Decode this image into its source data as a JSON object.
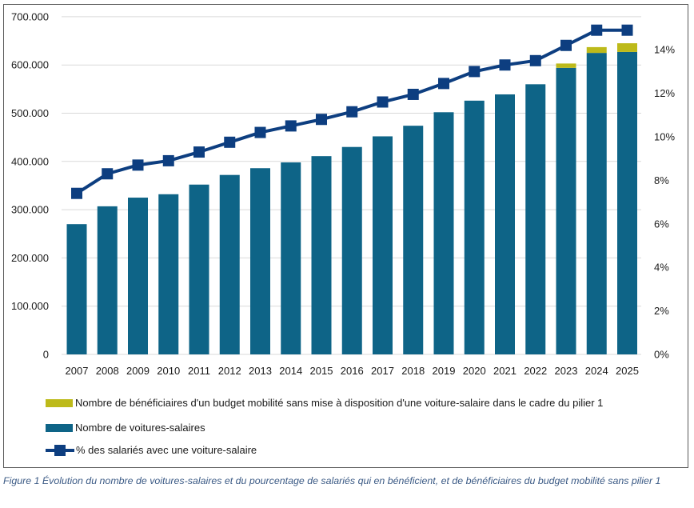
{
  "chart_data": {
    "type": "bar",
    "subtype": "stacked-bar-with-line-secondary-axis",
    "title": "",
    "xlabel": "",
    "ylabel": "",
    "y2label": "",
    "categories": [
      "2007",
      "2008",
      "2009",
      "2010",
      "2011",
      "2012",
      "2013",
      "2014",
      "2015",
      "2016",
      "2017",
      "2018",
      "2019",
      "2020",
      "2021",
      "2022",
      "2023",
      "2024",
      "2025"
    ],
    "series": [
      {
        "name": "Nombre de voitures-salaires",
        "type": "bar",
        "axis": "left",
        "color": "#0E6487",
        "values": [
          270000,
          307000,
          325000,
          332000,
          352000,
          372000,
          386000,
          398000,
          411000,
          430000,
          452000,
          474000,
          502000,
          526000,
          539000,
          560000,
          594000,
          625000,
          627000
        ]
      },
      {
        "name": "Nombre de bénéficiaires d'un budget mobilité sans mise à disposition d'une voiture-salaire dans le cadre du pilier 1",
        "type": "bar-stacked",
        "axis": "left",
        "color": "#BDBA1A",
        "values": [
          0,
          0,
          0,
          0,
          0,
          0,
          0,
          0,
          0,
          0,
          0,
          0,
          0,
          0,
          0,
          0,
          9000,
          12000,
          18000
        ]
      },
      {
        "name": "% des salariés avec une voiture-salaire",
        "type": "line",
        "axis": "right",
        "color": "#0D3E80",
        "values": [
          7.4,
          8.3,
          8.7,
          8.9,
          9.3,
          9.75,
          10.2,
          10.5,
          10.8,
          11.15,
          11.6,
          11.95,
          12.45,
          13.0,
          13.3,
          13.5,
          14.2,
          14.9,
          14.9
        ]
      }
    ],
    "ylim": [
      0,
      700000
    ],
    "y2lim": [
      0,
      15.5
    ],
    "yticks": [
      "0",
      "100.000",
      "200.000",
      "300.000",
      "400.000",
      "500.000",
      "600.000",
      "700.000"
    ],
    "ytick_values": [
      0,
      100000,
      200000,
      300000,
      400000,
      500000,
      600000,
      700000
    ],
    "y2ticks": [
      "0%",
      "2%",
      "4%",
      "6%",
      "8%",
      "10%",
      "12%",
      "14%"
    ],
    "y2tick_values": [
      0,
      2,
      4,
      6,
      8,
      10,
      12,
      14
    ],
    "grid": true,
    "legend_position": "bottom-left",
    "legend_order": [
      "Nombre de bénéficiaires d'un budget mobilité sans mise à disposition d'une voiture-salaire dans le cadre du pilier 1",
      "Nombre de voitures-salaires",
      "% des salariés avec une voiture-salaire"
    ]
  },
  "legend": {
    "items": [
      {
        "label": "Nombre de bénéficiaires d'un budget mobilité sans mise à disposition d'une voiture-salaire dans le cadre du pilier 1",
        "kind": "bar",
        "color": "#BDBA1A"
      },
      {
        "label": "Nombre de voitures-salaires",
        "kind": "bar",
        "color": "#0E6487"
      },
      {
        "label": "% des salariés avec une voiture-salaire",
        "kind": "line",
        "color": "#0D3E80"
      }
    ]
  },
  "caption": "Figure 1 Évolution du nombre de voitures-salaires et du pourcentage de salariés qui en bénéficient, et de bénéficiaires du budget mobilité sans pilier 1",
  "colors": {
    "gridline": "#d9d9d9",
    "tick_text": "#1a1a1a",
    "caption": "#3b5a85"
  }
}
